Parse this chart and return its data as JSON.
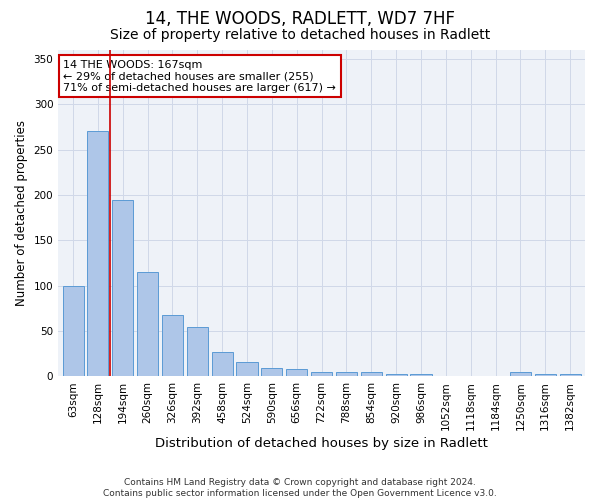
{
  "title": "14, THE WOODS, RADLETT, WD7 7HF",
  "subtitle": "Size of property relative to detached houses in Radlett",
  "xlabel": "Distribution of detached houses by size in Radlett",
  "ylabel": "Number of detached properties",
  "categories": [
    "63sqm",
    "128sqm",
    "194sqm",
    "260sqm",
    "326sqm",
    "392sqm",
    "458sqm",
    "524sqm",
    "590sqm",
    "656sqm",
    "722sqm",
    "788sqm",
    "854sqm",
    "920sqm",
    "986sqm",
    "1052sqm",
    "1118sqm",
    "1184sqm",
    "1250sqm",
    "1316sqm",
    "1382sqm"
  ],
  "values": [
    100,
    271,
    195,
    115,
    68,
    54,
    27,
    16,
    9,
    8,
    5,
    5,
    5,
    3,
    3,
    0,
    0,
    0,
    5,
    3,
    3
  ],
  "bar_color": "#aec6e8",
  "bar_edge_color": "#5b9bd5",
  "grid_color": "#d0d8e8",
  "background_color": "#eef2f8",
  "vline_x": 1.5,
  "vline_color": "#cc0000",
  "annotation_line1": "14 THE WOODS: 167sqm",
  "annotation_line2": "← 29% of detached houses are smaller (255)",
  "annotation_line3": "71% of semi-detached houses are larger (617) →",
  "annotation_box_color": "#cc0000",
  "ylim": [
    0,
    360
  ],
  "yticks": [
    0,
    50,
    100,
    150,
    200,
    250,
    300,
    350
  ],
  "footer": "Contains HM Land Registry data © Crown copyright and database right 2024.\nContains public sector information licensed under the Open Government Licence v3.0.",
  "title_fontsize": 12,
  "subtitle_fontsize": 10,
  "xlabel_fontsize": 9.5,
  "ylabel_fontsize": 8.5,
  "tick_fontsize": 7.5,
  "annotation_fontsize": 8,
  "footer_fontsize": 6.5
}
